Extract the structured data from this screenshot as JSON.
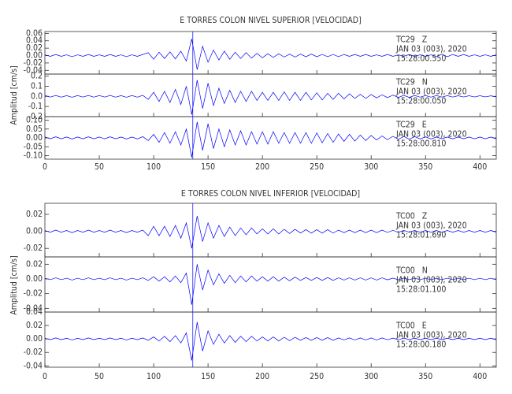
{
  "charts": [
    {
      "chart_data": {
        "type": "line",
        "title": "E TORRES COLON NIVEL SUPERIOR [VELOCIDAD]",
        "ylabel": "Amplitud [cm/s]",
        "color": "#0000ff",
        "marker": 136,
        "xlim": [
          0,
          415
        ],
        "xticks": [
          0,
          50,
          100,
          150,
          200,
          250,
          300,
          350,
          400
        ],
        "x": [
          0,
          5,
          10,
          15,
          20,
          25,
          30,
          35,
          40,
          45,
          50,
          55,
          60,
          65,
          70,
          75,
          80,
          85,
          90,
          95,
          100,
          105,
          110,
          115,
          120,
          125,
          130,
          135,
          140,
          145,
          150,
          155,
          160,
          165,
          170,
          175,
          180,
          185,
          190,
          195,
          200,
          205,
          210,
          215,
          220,
          225,
          230,
          235,
          240,
          245,
          250,
          255,
          260,
          265,
          270,
          275,
          280,
          285,
          290,
          295,
          300,
          305,
          310,
          315,
          320,
          325,
          330,
          335,
          340,
          345,
          350,
          355,
          360,
          365,
          370,
          375,
          380,
          385,
          390,
          395,
          400,
          405,
          410,
          415
        ],
        "panels": [
          {
            "station": "TC29   Z",
            "date": "JAN 03 (003), 2020",
            "time": "15:28:00.550",
            "ylim": [
              -0.05,
              0.065
            ],
            "yticks": [
              -0.04,
              -0.02,
              {
                "value": 0,
                "label": "0.00"
              },
              0.02,
              0.04,
              0.06
            ],
            "values": [
              0.002,
              -0.002,
              0.003,
              -0.002,
              0.002,
              -0.003,
              0.002,
              -0.002,
              0.003,
              -0.002,
              0.002,
              -0.002,
              0.003,
              -0.002,
              0.002,
              -0.003,
              0.002,
              -0.002,
              0.003,
              0.008,
              -0.01,
              0.009,
              -0.008,
              0.01,
              -0.009,
              0.012,
              -0.015,
              0.045,
              -0.038,
              0.025,
              -0.018,
              0.015,
              -0.012,
              0.012,
              -0.01,
              0.009,
              -0.008,
              0.008,
              -0.007,
              0.006,
              -0.006,
              0.005,
              -0.005,
              0.005,
              -0.004,
              0.004,
              -0.004,
              0.004,
              -0.003,
              0.004,
              -0.003,
              0.003,
              -0.003,
              0.003,
              -0.003,
              0.003,
              -0.002,
              0.003,
              -0.002,
              0.003,
              -0.002,
              0.002,
              -0.002,
              0.003,
              -0.002,
              0.002,
              -0.002,
              0.003,
              -0.002,
              0.002,
              -0.002,
              0.002,
              -0.003,
              0.004,
              -0.003,
              0.003,
              -0.002,
              0.003,
              -0.002,
              0.002,
              -0.002,
              0.002,
              -0.002,
              0.002
            ]
          },
          {
            "station": "TC29   N",
            "date": "JAN 03 (003), 2020",
            "time": "15:28:00.050",
            "ylim": [
              -0.2,
              0.22
            ],
            "yticks": [
              -0.2,
              -0.1,
              {
                "value": 0,
                "label": "0.0"
              },
              0.1,
              0.2
            ],
            "values": [
              0.008,
              -0.007,
              0.009,
              -0.008,
              0.007,
              -0.009,
              0.008,
              -0.007,
              0.009,
              -0.008,
              0.008,
              -0.007,
              0.009,
              -0.008,
              0.007,
              -0.009,
              0.008,
              -0.008,
              0.01,
              -0.03,
              0.04,
              -0.05,
              0.05,
              -0.06,
              0.07,
              -0.08,
              0.1,
              -0.18,
              0.16,
              -0.12,
              0.13,
              -0.09,
              0.08,
              -0.07,
              0.06,
              -0.06,
              0.05,
              -0.05,
              0.05,
              -0.04,
              0.04,
              -0.04,
              0.04,
              -0.04,
              0.045,
              -0.04,
              0.04,
              -0.04,
              0.04,
              -0.035,
              0.035,
              -0.035,
              0.03,
              -0.03,
              0.03,
              -0.025,
              0.025,
              -0.02,
              0.02,
              -0.02,
              0.018,
              -0.015,
              0.015,
              -0.012,
              0.012,
              -0.01,
              0.01,
              -0.01,
              0.009,
              -0.008,
              0.008,
              -0.008,
              0.008,
              -0.007,
              0.007,
              -0.007,
              0.006,
              -0.006,
              0.006,
              -0.006,
              0.006,
              -0.005,
              0.005,
              -0.005
            ]
          },
          {
            "station": "TC29   E",
            "date": "JAN 03 (003), 2020",
            "time": "15:28:00.810",
            "ylim": [
              -0.12,
              0.12
            ],
            "yticks": [
              {
                "value": -0.1,
                "label": "-0.10"
              },
              -0.05,
              {
                "value": 0,
                "label": "0.00"
              },
              0.05,
              {
                "value": 0.1,
                "label": "0.10"
              }
            ],
            "values": [
              0.005,
              -0.005,
              0.006,
              -0.005,
              0.005,
              -0.006,
              0.005,
              -0.005,
              0.006,
              -0.005,
              0.005,
              -0.005,
              0.006,
              -0.005,
              0.005,
              -0.006,
              0.005,
              -0.006,
              0.007,
              -0.015,
              0.02,
              -0.025,
              0.03,
              -0.03,
              0.035,
              -0.04,
              0.05,
              -0.11,
              0.09,
              -0.07,
              0.08,
              -0.06,
              0.05,
              -0.05,
              0.045,
              -0.04,
              0.04,
              -0.04,
              0.035,
              -0.035,
              0.035,
              -0.035,
              0.035,
              -0.03,
              0.03,
              -0.03,
              0.03,
              -0.03,
              0.03,
              -0.03,
              0.028,
              -0.028,
              0.025,
              -0.025,
              0.022,
              -0.02,
              0.02,
              -0.018,
              0.016,
              -0.015,
              0.014,
              -0.012,
              0.011,
              -0.01,
              0.009,
              -0.008,
              0.008,
              -0.007,
              0.007,
              -0.006,
              0.006,
              -0.006,
              0.005,
              -0.005,
              0.005,
              -0.005,
              0.005,
              -0.005,
              0.005,
              -0.005,
              0.005,
              -0.005,
              0.005,
              -0.005
            ]
          }
        ]
      }
    },
    {
      "chart_data": {
        "type": "line",
        "title": "E TORRES COLON NIVEL INFERIOR [VELOCIDAD]",
        "ylabel": "Amplitud [cm/s]",
        "color": "#0000ff",
        "marker": 136,
        "xlim": [
          0,
          415
        ],
        "xticks": [
          0,
          50,
          100,
          150,
          200,
          250,
          300,
          350,
          400
        ],
        "x": [
          0,
          5,
          10,
          15,
          20,
          25,
          30,
          35,
          40,
          45,
          50,
          55,
          60,
          65,
          70,
          75,
          80,
          85,
          90,
          95,
          100,
          105,
          110,
          115,
          120,
          125,
          130,
          135,
          140,
          145,
          150,
          155,
          160,
          165,
          170,
          175,
          180,
          185,
          190,
          195,
          200,
          205,
          210,
          215,
          220,
          225,
          230,
          235,
          240,
          245,
          250,
          255,
          260,
          265,
          270,
          275,
          280,
          285,
          290,
          295,
          300,
          305,
          310,
          315,
          320,
          325,
          330,
          335,
          340,
          345,
          350,
          355,
          360,
          365,
          370,
          375,
          380,
          385,
          390,
          395,
          400,
          405,
          410,
          415
        ],
        "panels": [
          {
            "station": "TC00   Z",
            "date": "JAN 03 (003), 2020",
            "time": "15:28:01.690",
            "ylim": [
              -0.03,
              0.033
            ],
            "yticks": [
              -0.02,
              {
                "value": 0,
                "label": "0.00"
              },
              0.02
            ],
            "values": [
              0.001,
              -0.001,
              0.0015,
              -0.001,
              0.001,
              -0.0015,
              0.001,
              -0.001,
              0.0015,
              -0.001,
              0.001,
              -0.001,
              0.0015,
              -0.001,
              0.001,
              -0.0015,
              0.001,
              -0.001,
              0.0015,
              -0.005,
              0.006,
              -0.005,
              0.006,
              -0.006,
              0.007,
              -0.008,
              0.01,
              -0.02,
              0.018,
              -0.012,
              0.01,
              -0.008,
              0.007,
              -0.006,
              0.005,
              -0.005,
              0.004,
              -0.004,
              0.004,
              -0.003,
              0.003,
              -0.003,
              0.003,
              -0.003,
              0.0025,
              -0.0025,
              0.0025,
              -0.002,
              0.002,
              -0.002,
              0.002,
              -0.002,
              0.002,
              -0.002,
              0.0015,
              -0.0015,
              0.0015,
              -0.0015,
              0.0015,
              -0.0015,
              0.0015,
              -0.0015,
              0.0015,
              -0.0012,
              0.0012,
              -0.0012,
              0.0012,
              -0.001,
              0.001,
              -0.001,
              0.001,
              -0.001,
              0.001,
              -0.001,
              0.001,
              -0.001,
              0.001,
              -0.001,
              0.001,
              -0.001,
              0.001,
              -0.001,
              0.001,
              -0.001
            ]
          },
          {
            "station": "TC00   N",
            "date": "JAN 03 (003), 2020",
            "time": "15:28:01.100",
            "ylim": [
              -0.045,
              0.03
            ],
            "yticks": [
              -0.04,
              -0.02,
              {
                "value": 0,
                "label": "0.00"
              },
              0.02
            ],
            "values": [
              0.001,
              -0.001,
              0.0015,
              -0.001,
              0.001,
              -0.0015,
              0.001,
              -0.001,
              0.0015,
              -0.001,
              0.001,
              -0.001,
              0.0015,
              -0.001,
              0.001,
              -0.0015,
              0.001,
              -0.001,
              0.0015,
              -0.002,
              0.003,
              -0.003,
              0.003,
              -0.004,
              0.004,
              -0.005,
              0.008,
              -0.035,
              0.02,
              -0.015,
              0.012,
              -0.008,
              0.007,
              -0.006,
              0.005,
              -0.005,
              0.004,
              -0.004,
              0.004,
              -0.003,
              0.003,
              -0.003,
              0.003,
              -0.003,
              0.0025,
              -0.0025,
              0.0025,
              -0.002,
              0.002,
              -0.002,
              0.002,
              -0.002,
              0.002,
              -0.002,
              0.0015,
              -0.0015,
              0.0015,
              -0.0015,
              0.0015,
              -0.0015,
              0.0015,
              -0.0015,
              0.0015,
              -0.0012,
              0.0012,
              -0.0012,
              0.0012,
              -0.001,
              0.001,
              -0.001,
              0.001,
              -0.001,
              0.001,
              -0.001,
              0.001,
              -0.001,
              0.001,
              -0.001,
              0.001,
              -0.001,
              0.001,
              -0.001,
              0.001,
              -0.001
            ]
          },
          {
            "station": "TC00   E",
            "date": "JAN 03 (003), 2020",
            "time": "15:28:00.180",
            "ylim": [
              -0.042,
              0.04
            ],
            "yticks": [
              -0.04,
              -0.02,
              {
                "value": 0,
                "label": "0.00"
              },
              0.02,
              0.04
            ],
            "values": [
              0.001,
              -0.001,
              0.0015,
              -0.001,
              0.001,
              -0.0015,
              0.001,
              -0.001,
              0.0015,
              -0.001,
              0.001,
              -0.001,
              0.0015,
              -0.001,
              0.001,
              -0.0015,
              0.001,
              -0.001,
              0.0015,
              -0.002,
              0.003,
              -0.003,
              0.004,
              -0.004,
              0.005,
              -0.006,
              0.009,
              -0.032,
              0.025,
              -0.018,
              0.012,
              -0.008,
              0.007,
              -0.006,
              0.005,
              -0.005,
              0.004,
              -0.004,
              0.004,
              -0.003,
              0.003,
              -0.003,
              0.003,
              -0.003,
              0.0025,
              -0.0025,
              0.0025,
              -0.002,
              0.002,
              -0.002,
              0.002,
              -0.002,
              0.002,
              -0.002,
              0.0015,
              -0.0015,
              0.0015,
              -0.0015,
              0.0015,
              -0.0015,
              0.0015,
              -0.0015,
              0.0015,
              -0.0012,
              0.0012,
              -0.0012,
              0.0012,
              -0.001,
              0.001,
              -0.001,
              0.001,
              -0.001,
              0.001,
              -0.001,
              0.001,
              -0.001,
              0.001,
              -0.001,
              0.001,
              -0.001,
              0.001,
              -0.001,
              0.001,
              -0.001
            ]
          }
        ]
      }
    }
  ]
}
